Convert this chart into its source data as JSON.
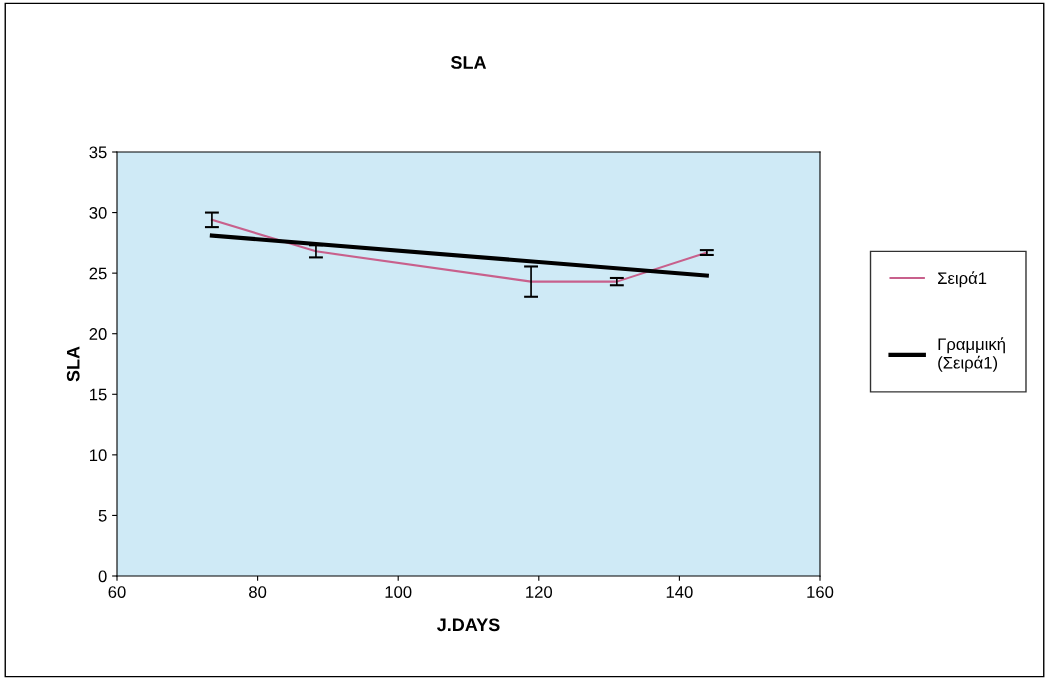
{
  "chart_data": {
    "type": "line",
    "title": "SLA",
    "xlabel": "J.DAYS",
    "ylabel": "SLA",
    "x": [
      73.5,
      88.3,
      118.9,
      131.1,
      143.9
    ],
    "series": [
      {
        "name": "Σειρά1",
        "color": "#c8608c",
        "values": [
          29.4,
          26.8,
          24.3,
          24.3,
          26.7
        ],
        "errors": [
          0.6,
          0.5,
          1.25,
          0.3,
          0.2
        ]
      },
      {
        "name": "Γραμμική\n(Σειρά1)",
        "color": "#000000",
        "type": "line",
        "x": [
          73.5,
          143.9
        ],
        "values": [
          28.1,
          24.8
        ]
      }
    ],
    "xlim": [
      60,
      160
    ],
    "xticks": [
      60,
      80,
      100,
      120,
      140,
      160
    ],
    "ylim": [
      0,
      35
    ],
    "yticks": [
      0,
      5,
      10,
      15,
      20,
      25,
      30,
      35
    ],
    "grid": false,
    "legend": "right",
    "marker": "none",
    "line_style": "solid"
  }
}
